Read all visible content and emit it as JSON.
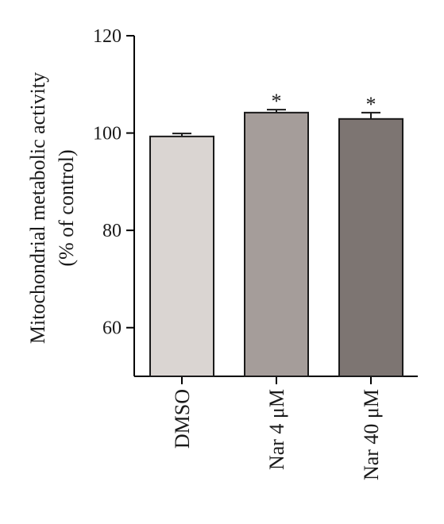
{
  "chart_data": {
    "type": "bar",
    "title": "",
    "xlabel": "",
    "ylabel_lines": [
      "Mitochondrial metabolic activity",
      "(% of control)"
    ],
    "ylim": [
      50,
      120
    ],
    "yticks": [
      60,
      80,
      100,
      120
    ],
    "ytick_labels": [
      "60",
      "80",
      "100",
      "120"
    ],
    "categories": [
      "DMSO",
      "Nar 4 μM",
      "Nar 40 μM"
    ],
    "values": [
      99.3,
      104.2,
      102.9
    ],
    "errors": [
      0.6,
      0.6,
      1.3
    ],
    "significance": [
      "",
      "*",
      "*"
    ],
    "colors": [
      "#dad5d2",
      "#a59d9a",
      "#7d7572"
    ],
    "grid": false
  }
}
